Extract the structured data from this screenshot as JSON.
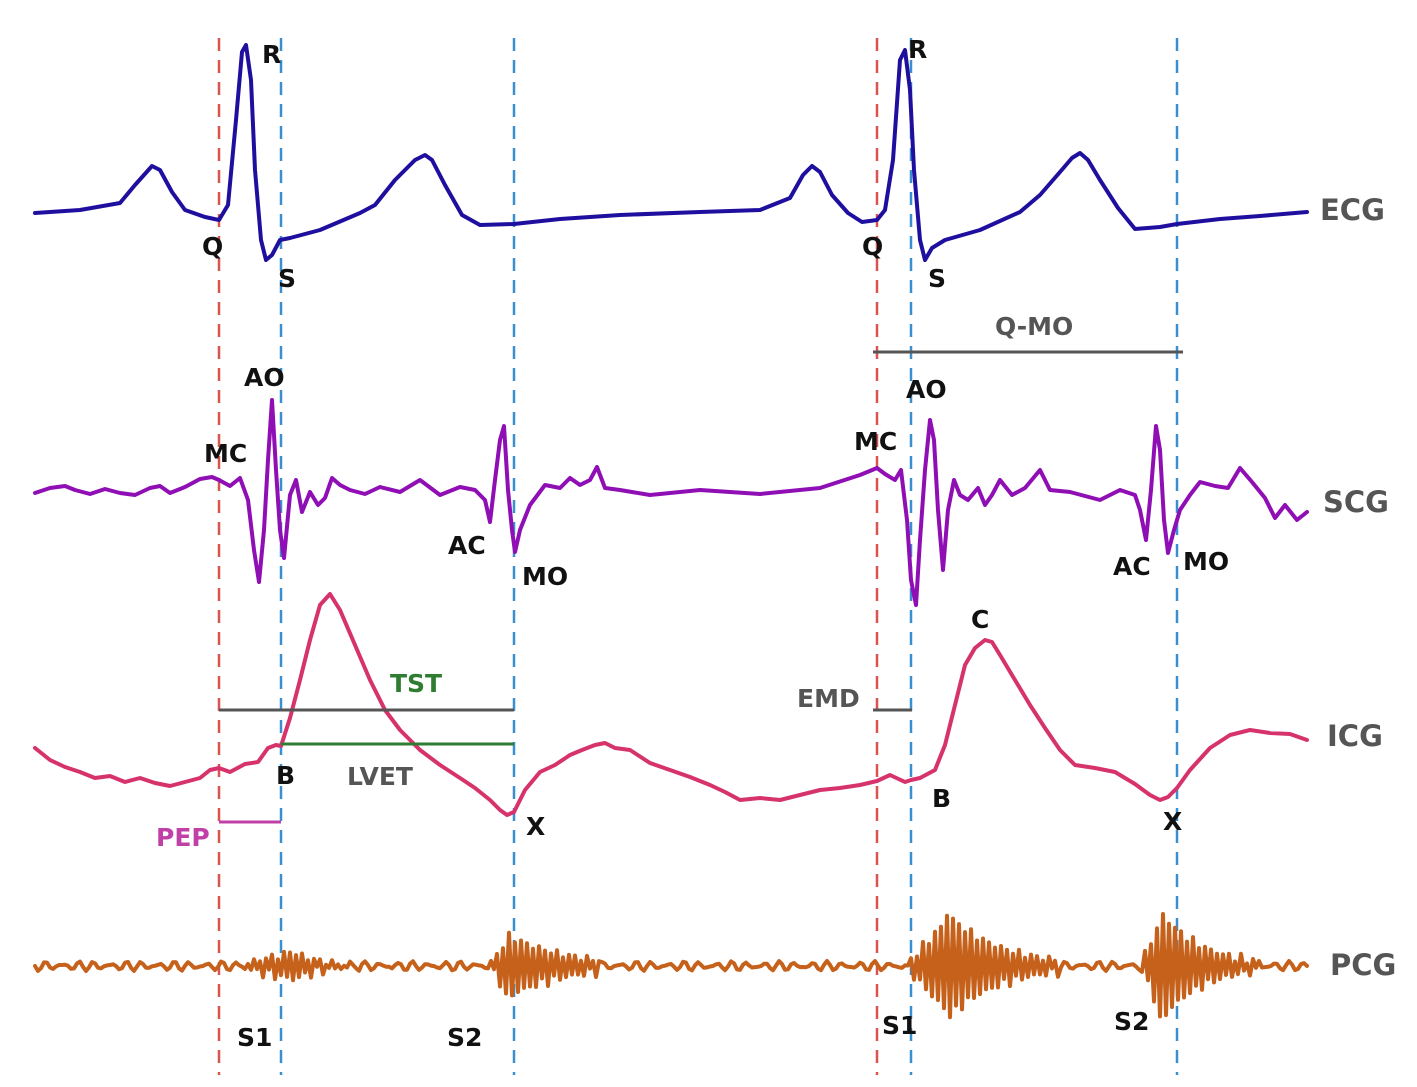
{
  "colors": {
    "ecg": "#1f0f9e",
    "scg": "#8f0fb5",
    "icg": "#d6336c",
    "pcg": "#c5611a",
    "red_dash": "#d9534f",
    "blue_dash": "#3a8fd0",
    "gray_line": "#555555",
    "tst": "#2e7d32",
    "lvet_line": "#2e7d32",
    "pep": "#c040a8",
    "text": "#111111",
    "trace_name": "#555555"
  },
  "traces": {
    "ecg": "ECG",
    "scg": "SCG",
    "icg": "ICG",
    "pcg": "PCG"
  },
  "beat1": {
    "ecg": {
      "q": "Q",
      "r": "R",
      "s": "S"
    },
    "scg": {
      "mc": "MC",
      "ao": "AO",
      "ac": "AC",
      "mo": "MO"
    },
    "icg": {
      "b": "B",
      "x": "X"
    },
    "pcg": {
      "s1": "S1",
      "s2": "S2"
    },
    "intervals": {
      "tst": "TST",
      "lvet": "LVET",
      "pep": "PEP"
    }
  },
  "beat2": {
    "ecg": {
      "q": "Q",
      "r": "R",
      "s": "S"
    },
    "scg": {
      "mc": "MC",
      "ao": "AO",
      "ac": "AC",
      "mo": "MO"
    },
    "icg": {
      "b": "B",
      "c": "C",
      "x": "X"
    },
    "pcg": {
      "s1": "S1",
      "s2": "S2"
    },
    "intervals": {
      "q_mo": "Q-MO",
      "emd": "EMD"
    }
  }
}
